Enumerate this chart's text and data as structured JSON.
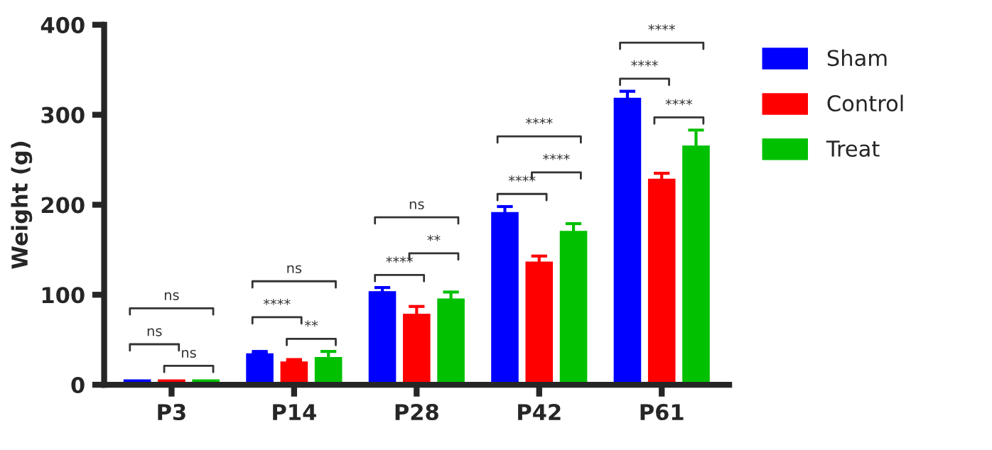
{
  "chart_data": {
    "type": "bar",
    "ylabel": "Weight (g)",
    "categories": [
      "P3",
      "P14",
      "P28",
      "P42",
      "P61"
    ],
    "series": [
      {
        "name": "Sham",
        "color": "#0000ff",
        "values": [
          7,
          36,
          105,
          193,
          320
        ],
        "errors": [
          null,
          1,
          3,
          5,
          6
        ]
      },
      {
        "name": "Control",
        "color": "#ff0000",
        "values": [
          7,
          27,
          80,
          138,
          230
        ],
        "errors": [
          null,
          1,
          7,
          5,
          5
        ]
      },
      {
        "name": "Treat",
        "color": "#00c000",
        "values": [
          7,
          32,
          97,
          172,
          267
        ],
        "errors": [
          null,
          5,
          6,
          7,
          16
        ]
      }
    ],
    "ylim": [
      0,
      400
    ],
    "yticks": [
      0,
      100,
      200,
      300,
      400
    ],
    "grid": false,
    "legend": "right",
    "annotations": [
      "ns",
      "ns",
      "ns",
      "****",
      "**",
      "ns",
      "****",
      "**",
      "ns",
      "****",
      "****",
      "****",
      "****",
      "****",
      "****"
    ]
  }
}
